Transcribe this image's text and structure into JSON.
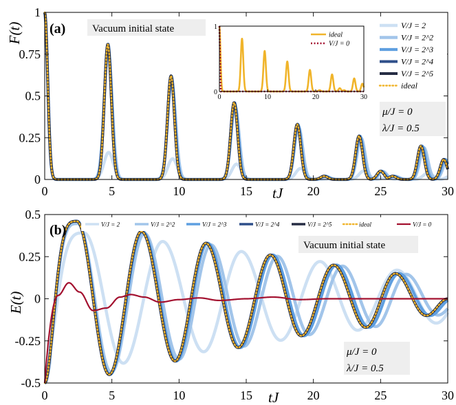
{
  "colors": {
    "V2": "#cde0f3",
    "V4": "#a2c5ea",
    "V8": "#5f9fe0",
    "V16": "#2f4f8a",
    "V32": "#262d44",
    "ideal": "#f0b42a",
    "V0": "#a3102f",
    "box": "#eeeeee"
  },
  "chart_data": [
    {
      "panel": "(a)",
      "type": "line",
      "ylabel": "F(t)",
      "xlabel": "tJ",
      "xlim": [
        0,
        30
      ],
      "ylim": [
        0,
        1
      ],
      "xticks": [
        "0",
        "5",
        "10",
        "15",
        "20",
        "25",
        "30"
      ],
      "yticks": [
        "0",
        "0.25",
        "0.5",
        "0.75",
        "1"
      ],
      "annotation_box": "Vacuum initial state",
      "params": [
        "μ/J = 0",
        "λ/J = 0.5"
      ],
      "legend": [
        "V/J = 2",
        "V/J = 2^2",
        "V/J = 2^3",
        "V/J = 2^4",
        "V/J = 2^5",
        "ideal"
      ],
      "legend_position": "top-right",
      "peaks": [
        {
          "x": 0.0,
          "y": 1.0
        },
        {
          "x": 4.7,
          "y": 0.81
        },
        {
          "x": 9.4,
          "y": 0.62
        },
        {
          "x": 14.1,
          "y": 0.46
        },
        {
          "x": 18.8,
          "y": 0.33
        },
        {
          "x": 20.8,
          "y": 0.02
        },
        {
          "x": 23.4,
          "y": 0.26
        },
        {
          "x": 25.0,
          "y": 0.05
        },
        {
          "x": 25.9,
          "y": 0.02
        },
        {
          "x": 28.0,
          "y": 0.2
        },
        {
          "x": 29.7,
          "y": 0.12
        }
      ],
      "series": [
        {
          "name": "V/J = 2",
          "key": "V2",
          "scale": 0.2,
          "shift": 0.12,
          "width": 0.35
        },
        {
          "name": "V/J = 2^2",
          "key": "V4",
          "scale": 0.95,
          "shift": 0.05,
          "width": 0.3
        },
        {
          "name": "V/J = 2^3",
          "key": "V8",
          "scale": 1.0,
          "shift": 0.02,
          "width": 0.27
        },
        {
          "name": "V/J = 2^4",
          "key": "V16",
          "scale": 1.0,
          "shift": 0.0,
          "width": 0.26
        },
        {
          "name": "V/J = 2^5",
          "key": "V32",
          "scale": 1.0,
          "shift": 0.0,
          "width": 0.26
        },
        {
          "name": "ideal",
          "key": "ideal",
          "scale": 1.0,
          "shift": 0.0,
          "width": 0.26
        }
      ],
      "inset": {
        "xlim": [
          0,
          30
        ],
        "ylim": [
          0,
          1
        ],
        "xticks": [
          "0",
          "10",
          "20",
          "30"
        ],
        "yticks": [
          "0",
          "1"
        ],
        "legend": [
          "ideal",
          "V/J = 0"
        ]
      }
    },
    {
      "panel": "(b)",
      "type": "line",
      "ylabel": "E(t)",
      "xlabel": "tJ",
      "xlim": [
        0,
        30
      ],
      "ylim": [
        -0.5,
        0.5
      ],
      "xticks": [
        "0",
        "5",
        "10",
        "15",
        "20",
        "25",
        "30"
      ],
      "yticks": [
        "-0.5",
        "-0.25",
        "0",
        "0.25",
        "0.5"
      ],
      "annotation_box": "Vacuum initial state",
      "params": [
        "μ/J = 0",
        "λ/J = 0.5"
      ],
      "legend": [
        "V/J = 2",
        "V/J = 2^2",
        "V/J = 2^3",
        "V/J = 2^4",
        "V/J = 2^5",
        "ideal",
        "V/J = 0"
      ],
      "legend_position": "top",
      "extrema": [
        {
          "x": 0.0,
          "y": -0.5
        },
        {
          "x": 2.4,
          "y": 0.46
        },
        {
          "x": 4.8,
          "y": -0.45
        },
        {
          "x": 7.2,
          "y": 0.4
        },
        {
          "x": 9.7,
          "y": -0.37
        },
        {
          "x": 12.0,
          "y": 0.33
        },
        {
          "x": 14.4,
          "y": -0.29
        },
        {
          "x": 16.8,
          "y": 0.26
        },
        {
          "x": 19.1,
          "y": -0.22
        },
        {
          "x": 21.5,
          "y": 0.2
        },
        {
          "x": 23.9,
          "y": -0.17
        },
        {
          "x": 26.1,
          "y": 0.15
        },
        {
          "x": 28.4,
          "y": -0.1
        },
        {
          "x": 30.0,
          "y": 0.0
        }
      ],
      "series": [
        {
          "name": "V/J = 2",
          "key": "V2",
          "speed": 0.82,
          "amp": 0.85
        },
        {
          "name": "V/J = 2^2",
          "key": "V4",
          "speed": 0.97,
          "amp": 0.97
        },
        {
          "name": "V/J = 2^3",
          "key": "V8",
          "speed": 0.99,
          "amp": 1.0
        },
        {
          "name": "V/J = 2^4",
          "key": "V16",
          "speed": 1.0,
          "amp": 1.0
        },
        {
          "name": "V/J = 2^5",
          "key": "V32",
          "speed": 1.0,
          "amp": 1.0
        },
        {
          "name": "ideal",
          "key": "ideal",
          "speed": 1.0,
          "amp": 1.0
        }
      ],
      "v0_series": {
        "name": "V/J = 0",
        "key": "V0",
        "points": [
          [
            0,
            -0.5
          ],
          [
            1.0,
            0.02
          ],
          [
            1.8,
            0.095
          ],
          [
            2.6,
            0.04
          ],
          [
            3.6,
            -0.07
          ],
          [
            4.6,
            -0.055
          ],
          [
            5.6,
            0.01
          ],
          [
            6.4,
            0.025
          ],
          [
            7.4,
            0.01
          ],
          [
            8.6,
            -0.02
          ],
          [
            10.0,
            -0.005
          ],
          [
            11.5,
            0.005
          ],
          [
            13.0,
            -0.01
          ],
          [
            15.0,
            0.0
          ],
          [
            17.0,
            0.01
          ],
          [
            19.0,
            -0.005
          ],
          [
            21.0,
            0.0
          ],
          [
            23.0,
            0.0
          ],
          [
            25.0,
            0.0
          ],
          [
            27.0,
            0.0
          ],
          [
            30.0,
            0.0
          ]
        ]
      }
    }
  ]
}
